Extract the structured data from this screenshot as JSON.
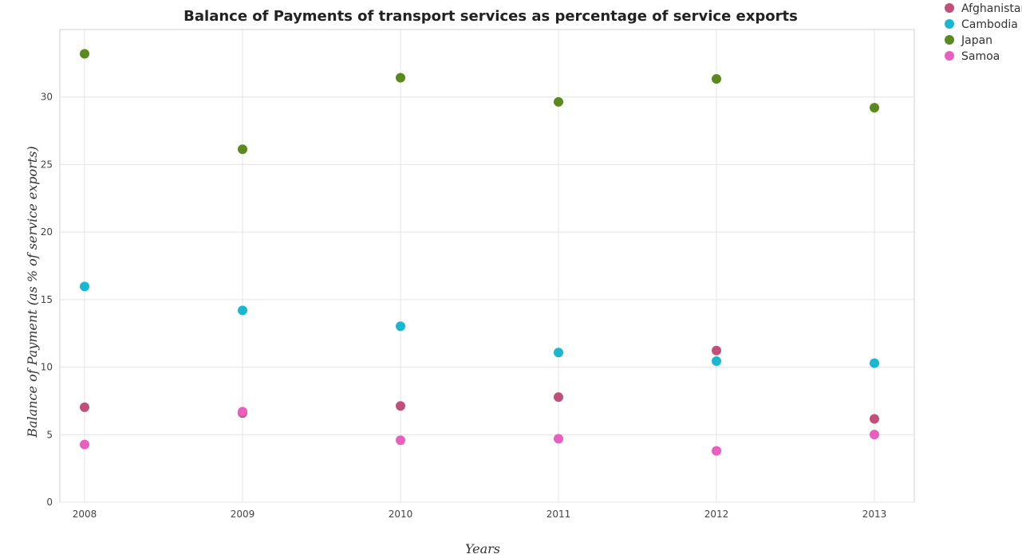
{
  "chart_data": {
    "type": "scatter",
    "title": "Balance of Payments of transport services as percentage of service exports",
    "xlabel": "Years",
    "ylabel": "Balance of Payment (as % of service exports)",
    "categories": [
      "2008",
      "2009",
      "2010",
      "2011",
      "2012",
      "2013"
    ],
    "ylim": [
      0,
      35
    ],
    "yticks": [
      0,
      5,
      10,
      15,
      20,
      25,
      30
    ],
    "grid": true,
    "legend_position": "top-right",
    "series": [
      {
        "name": "Afghanistan",
        "color": "#c0507a",
        "values": [
          7.03,
          6.6,
          7.13,
          7.78,
          11.23,
          6.17
        ]
      },
      {
        "name": "Cambodia",
        "color": "#1ab7d0",
        "values": [
          15.97,
          14.2,
          13.03,
          11.08,
          10.45,
          10.29
        ]
      },
      {
        "name": "Japan",
        "color": "#5a8a1e",
        "values": [
          33.2,
          26.13,
          31.43,
          29.64,
          31.34,
          29.21
        ]
      },
      {
        "name": "Samoa",
        "color": "#e85fbf",
        "values": [
          4.27,
          6.71,
          4.59,
          4.7,
          3.8,
          5.01
        ]
      }
    ]
  }
}
